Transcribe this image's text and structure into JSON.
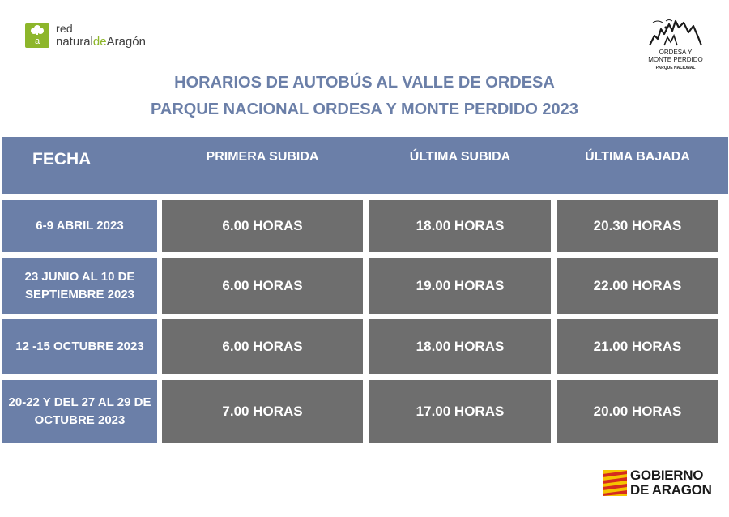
{
  "logos": {
    "red_natural": {
      "mark_letter": "a",
      "line1": "red",
      "line2_a": "natural",
      "line2_b": "de",
      "line2_c": "Aragón"
    },
    "park": {
      "name_line1": "ORDESA Y",
      "name_line2": "MONTE PERDIDO",
      "subtitle": "PARQUE NACIONAL"
    },
    "gobierno": {
      "line1": "GOBIERNO",
      "line2": "DE ARAGON"
    }
  },
  "title": {
    "line1": "HORARIOS DE AUTOBÚS AL VALLE DE ORDESA",
    "line2": "PARQUE NACIONAL ORDESA Y MONTE PERDIDO 2023"
  },
  "table": {
    "headers": {
      "fecha": "FECHA",
      "primera_subida": "PRIMERA SUBIDA",
      "ultima_subida": "ÚLTIMA SUBIDA",
      "ultima_bajada": "ÚLTIMA BAJADA"
    },
    "rows": [
      {
        "fecha": "6-9 ABRIL 2023",
        "primera_subida": "6.00 HORAS",
        "ultima_subida": "18.00 HORAS",
        "ultima_bajada": "20.30 HORAS"
      },
      {
        "fecha": "23 JUNIO AL 10 DE SEPTIEMBRE 2023",
        "primera_subida": "6.00 HORAS",
        "ultima_subida": "19.00 HORAS",
        "ultima_bajada": "22.00 HORAS"
      },
      {
        "fecha": "12 -15 OCTUBRE 2023",
        "primera_subida": "6.00 HORAS",
        "ultima_subida": "18.00 HORAS",
        "ultima_bajada": "21.00 HORAS"
      },
      {
        "fecha": "20-22 Y DEL 27 AL 29 DE OCTUBRE 2023",
        "primera_subida": "7.00 HORAS",
        "ultima_subida": "17.00 HORAS",
        "ultima_bajada": "20.00 HORAS"
      }
    ]
  },
  "colors": {
    "accent_blue": "#6b7fa8",
    "cell_gray": "#6e6e6e",
    "brand_green": "#8db62b",
    "flag_red": "#d52b1e",
    "flag_yellow": "#f5c400"
  },
  "icons": [
    "red-natural-aragon-logo",
    "ordesa-mountain-logo",
    "aragon-flag-icon"
  ]
}
